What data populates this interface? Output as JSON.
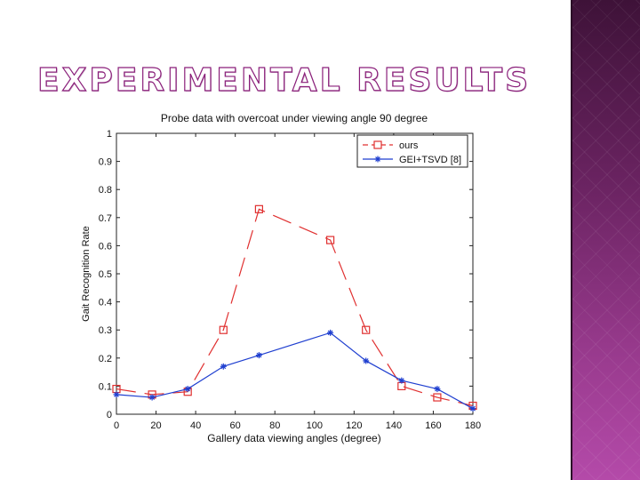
{
  "slide": {
    "title": "EXPERIMENTAL RESULTS"
  },
  "chart_data": {
    "type": "line",
    "title": "Probe data with overcoat under viewing angle 90 degree",
    "xlabel": "Gallery data viewing angles (degree)",
    "ylabel": "Gait Recognition Rate",
    "xlim": [
      0,
      180
    ],
    "ylim": [
      0,
      1
    ],
    "xticks": [
      0,
      20,
      40,
      60,
      80,
      100,
      120,
      140,
      160,
      180
    ],
    "yticks": [
      0,
      0.1,
      0.2,
      0.3,
      0.4,
      0.5,
      0.6,
      0.7,
      0.8,
      0.9,
      1
    ],
    "ytick_labels": [
      "0",
      "0.1",
      "0.2",
      "0.3",
      "0.4",
      "0.5",
      "0.6",
      "0.7",
      "0.8",
      "0.9",
      "1"
    ],
    "grid": false,
    "legend_position": "top-right",
    "x": [
      0,
      18,
      36,
      54,
      72,
      108,
      126,
      144,
      162,
      180
    ],
    "series": [
      {
        "name": "ours",
        "color": "#e03030",
        "marker": "square",
        "dash": true,
        "values": [
          0.09,
          0.07,
          0.08,
          0.3,
          0.73,
          0.62,
          0.3,
          0.1,
          0.06,
          0.03
        ]
      },
      {
        "name": "GEI+TSVD [8]",
        "color": "#1f3fd0",
        "marker": "star",
        "dash": false,
        "values": [
          0.07,
          0.06,
          0.09,
          0.17,
          0.21,
          0.29,
          0.19,
          0.12,
          0.09,
          0.02
        ]
      }
    ]
  }
}
